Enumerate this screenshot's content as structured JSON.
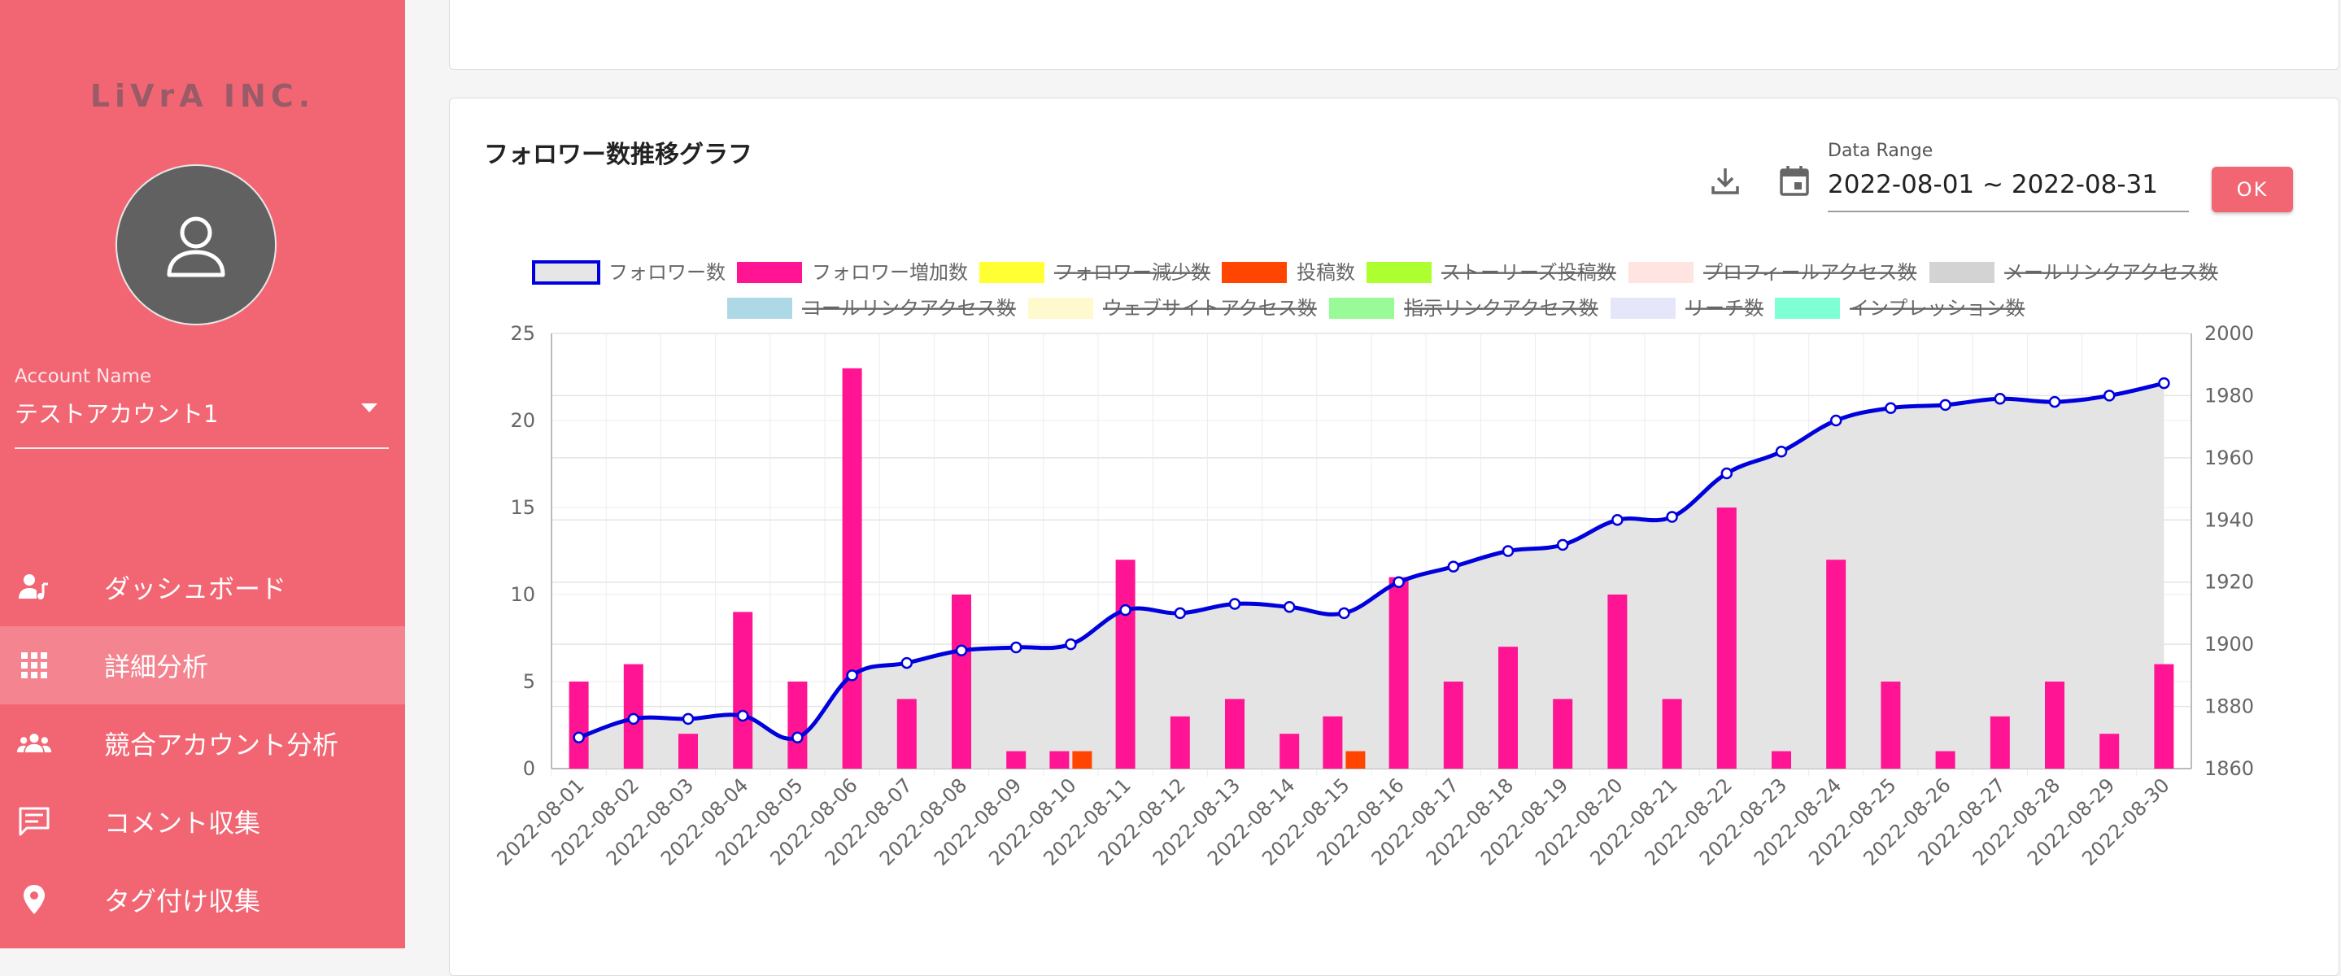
{
  "sidebar": {
    "logo": "LiVrA INC.",
    "account_label": "Account Name",
    "account_value": "テストアカウント1",
    "nav": [
      {
        "label": "ダッシュボード",
        "icon": "person-music-icon",
        "active": false
      },
      {
        "label": "詳細分析",
        "icon": "grid-icon",
        "active": true
      },
      {
        "label": "競合アカウント分析",
        "icon": "group-icon",
        "active": false
      },
      {
        "label": "コメント収集",
        "icon": "comment-icon",
        "active": false
      },
      {
        "label": "タグ付け収集",
        "icon": "location-pin-icon",
        "active": false
      }
    ],
    "colors": {
      "background": "#f26673"
    }
  },
  "card": {
    "title": "フォロワー数推移グラフ",
    "date_range_label": "Data Range",
    "date_range_value": "2022-08-01 ~ 2022-08-31",
    "ok_label": "OK",
    "icons": [
      "download-icon",
      "calendar-icon"
    ]
  },
  "chart_data": {
    "type": "bar",
    "categories": [
      "2022-08-01",
      "2022-08-02",
      "2022-08-03",
      "2022-08-04",
      "2022-08-05",
      "2022-08-06",
      "2022-08-07",
      "2022-08-08",
      "2022-08-09",
      "2022-08-10",
      "2022-08-11",
      "2022-08-12",
      "2022-08-13",
      "2022-08-14",
      "2022-08-15",
      "2022-08-16",
      "2022-08-17",
      "2022-08-18",
      "2022-08-19",
      "2022-08-20",
      "2022-08-21",
      "2022-08-22",
      "2022-08-23",
      "2022-08-24",
      "2022-08-25",
      "2022-08-26",
      "2022-08-27",
      "2022-08-28",
      "2022-08-29",
      "2022-08-30"
    ],
    "legend": [
      {
        "name": "フォロワー数",
        "color": "#e6e6e6",
        "border": "#0000dd",
        "hidden": false
      },
      {
        "name": "フォロワー増加数",
        "color": "#ff1493",
        "hidden": false
      },
      {
        "name": "フォロワー減少数",
        "color": "#ffff33",
        "hidden": true
      },
      {
        "name": "投稿数",
        "color": "#ff4500",
        "hidden": false
      },
      {
        "name": "ストーリーズ投稿数",
        "color": "#adff2f",
        "hidden": true
      },
      {
        "name": "プロフィールアクセス数",
        "color": "#ffe4e1",
        "hidden": true
      },
      {
        "name": "メールリンクアクセス数",
        "color": "#d3d3d3",
        "hidden": true
      },
      {
        "name": "コールリンクアクセス数",
        "color": "#add8e6",
        "hidden": true
      },
      {
        "name": "ウェブサイトアクセス数",
        "color": "#fffacd",
        "hidden": true
      },
      {
        "name": "指示リンクアクセス数",
        "color": "#98fb98",
        "hidden": true
      },
      {
        "name": "リーチ数",
        "color": "#e6e6fa",
        "hidden": true
      },
      {
        "name": "インプレッション数",
        "color": "#7fffd4",
        "hidden": true
      }
    ],
    "series": [
      {
        "name": "フォロワー増加数",
        "axis": "left",
        "type": "bar",
        "color": "#ff1493",
        "values": [
          5,
          6,
          2,
          9,
          5,
          23,
          4,
          10,
          1,
          1,
          12,
          3,
          4,
          2,
          3,
          11,
          5,
          7,
          4,
          10,
          4,
          15,
          1,
          12,
          5,
          1,
          3,
          5,
          2,
          6
        ]
      },
      {
        "name": "投稿数",
        "axis": "left",
        "type": "bar",
        "color": "#ff4500",
        "values": [
          0,
          0,
          0,
          0,
          0,
          0,
          0,
          0,
          0,
          1,
          0,
          0,
          0,
          0,
          1,
          0,
          0,
          0,
          0,
          0,
          0,
          0,
          0,
          0,
          0,
          0,
          0,
          0,
          0,
          0
        ]
      },
      {
        "name": "フォロワー数",
        "axis": "right",
        "type": "area-line",
        "color": "#0000dd",
        "values": [
          1870,
          1876,
          1876,
          1877,
          1870,
          1890,
          1894,
          1898,
          1899,
          1900,
          1911,
          1910,
          1913,
          1912,
          1910,
          1920,
          1925,
          1930,
          1932,
          1940,
          1941,
          1955,
          1962,
          1972,
          1976,
          1977,
          1979,
          1978,
          1980,
          1984
        ]
      }
    ],
    "y_left": {
      "min": 0,
      "max": 25,
      "ticks": [
        0,
        5,
        10,
        15,
        20,
        25
      ]
    },
    "y_right": {
      "min": 1860,
      "max": 2000,
      "ticks": [
        1860,
        1880,
        1900,
        1920,
        1940,
        1960,
        1980,
        2000
      ]
    },
    "grid": true,
    "legend_position": "top"
  }
}
